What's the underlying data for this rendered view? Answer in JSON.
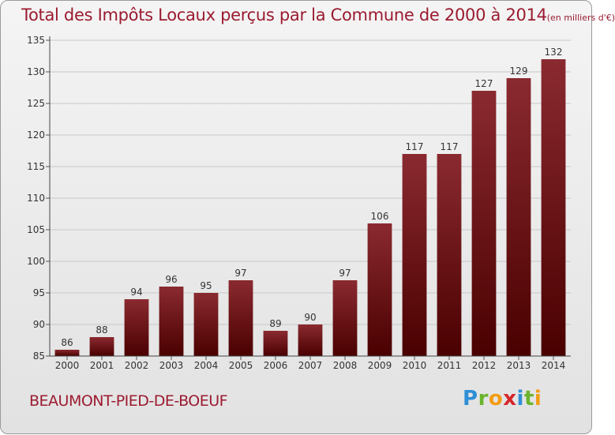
{
  "title": "Total des Impôts Locaux perçus par la Commune de 2000 à 2014",
  "title_unit": "(en milliers d'€)",
  "commune": "BEAUMONT-PIED-DE-BOEUF",
  "logo": {
    "letters": [
      "P",
      "r",
      "o",
      "x",
      "i",
      "t",
      "i"
    ],
    "colors": [
      "#2e8fd6",
      "#6ab42d",
      "#f39c12",
      "#d6262b",
      "#2e8fd6",
      "#6ab42d",
      "#f39c12"
    ]
  },
  "colors": {
    "bar_top": "#8a2a30",
    "bar_bottom": "#4a0000",
    "accent": "#9b1b30"
  },
  "chart_data": {
    "type": "bar",
    "title": "Total des Impôts Locaux perçus par la Commune de 2000 à 2014 (en milliers d'€)",
    "xlabel": "",
    "ylabel": "",
    "categories": [
      "2000",
      "2001",
      "2002",
      "2003",
      "2004",
      "2005",
      "2006",
      "2007",
      "2008",
      "2009",
      "2010",
      "2011",
      "2012",
      "2013",
      "2014"
    ],
    "values": [
      86,
      88,
      94,
      96,
      95,
      97,
      89,
      90,
      97,
      106,
      117,
      117,
      127,
      129,
      132
    ],
    "ylim": [
      85,
      135
    ],
    "yticks": [
      85,
      90,
      95,
      100,
      105,
      110,
      115,
      120,
      125,
      130,
      135
    ],
    "grid": true
  }
}
